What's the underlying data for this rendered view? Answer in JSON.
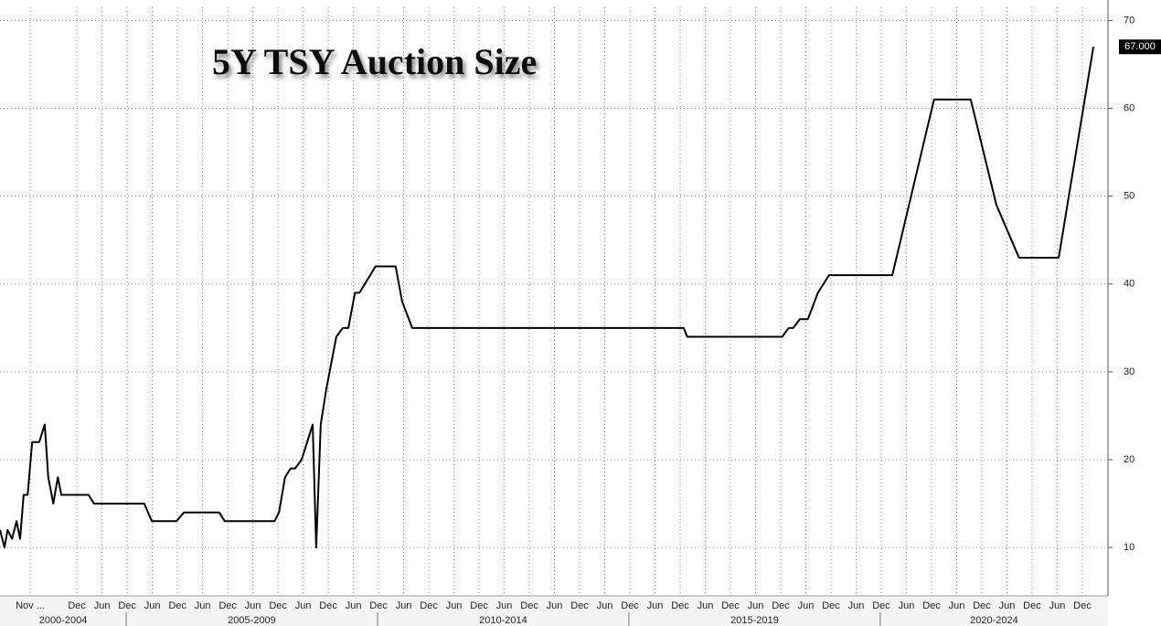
{
  "chart_data": {
    "type": "line",
    "title": "5Y TSY Auction Size",
    "x": [
      2002.49,
      2002.58,
      2002.64,
      2002.73,
      2002.82,
      2002.89,
      2002.96,
      2003.04,
      2003.13,
      2003.27,
      2003.38,
      2003.45,
      2003.55,
      2003.64,
      2003.71,
      2004.25,
      2004.36,
      2005.36,
      2005.51,
      2006.0,
      2006.15,
      2006.85,
      2006.96,
      2007.95,
      2008.04,
      2008.16,
      2008.27,
      2008.36,
      2008.49,
      2008.6,
      2008.71,
      2008.78,
      2008.87,
      2008.98,
      2009.18,
      2009.31,
      2009.42,
      2009.55,
      2009.64,
      2009.96,
      2010.36,
      2010.49,
      2010.69,
      2016.09,
      2016.16,
      2018.05,
      2018.18,
      2018.27,
      2018.4,
      2018.56,
      2018.76,
      2018.98,
      2020.24,
      2021.07,
      2021.8,
      2022.31,
      2022.76,
      2023.55,
      2024.24
    ],
    "series": [
      {
        "name": "5Y TSY Auction Size",
        "color": "#000000",
        "values": [
          12,
          10,
          12,
          11,
          13,
          11,
          16,
          16,
          22,
          22,
          24,
          18,
          15,
          18,
          16,
          16,
          15,
          15,
          13,
          13,
          14,
          14,
          13,
          13,
          14,
          18,
          19,
          19,
          20,
          22,
          24,
          10,
          24,
          28,
          34,
          35,
          35,
          39,
          39,
          42,
          42,
          38,
          35,
          35,
          34,
          34,
          35,
          35,
          36,
          36,
          39,
          41,
          41,
          61,
          61,
          49,
          43,
          43,
          67
        ]
      }
    ],
    "end_label": "67.000",
    "xlim": [
      2002.49,
      2024.53
    ],
    "ylim": [
      4.5,
      71.5
    ],
    "yticks": [
      10,
      20,
      30,
      40,
      50,
      60,
      70
    ],
    "xticks": [
      {
        "value": 2003.09,
        "label": "Nov ..."
      },
      {
        "value": 2004.02,
        "label": "Dec"
      },
      {
        "value": 2004.52,
        "label": "Jun"
      },
      {
        "value": 2005.02,
        "label": "Dec"
      },
      {
        "value": 2005.52,
        "label": "Jun"
      },
      {
        "value": 2006.02,
        "label": "Dec"
      },
      {
        "value": 2006.52,
        "label": "Jun"
      },
      {
        "value": 2007.02,
        "label": "Dec"
      },
      {
        "value": 2007.52,
        "label": "Jun"
      },
      {
        "value": 2008.02,
        "label": "Dec"
      },
      {
        "value": 2008.52,
        "label": "Jun"
      },
      {
        "value": 2009.02,
        "label": "Dec"
      },
      {
        "value": 2009.52,
        "label": "Jun"
      },
      {
        "value": 2010.02,
        "label": "Dec"
      },
      {
        "value": 2010.52,
        "label": "Jun"
      },
      {
        "value": 2011.02,
        "label": "Dec"
      },
      {
        "value": 2011.52,
        "label": "Jun"
      },
      {
        "value": 2012.02,
        "label": "Dec"
      },
      {
        "value": 2012.52,
        "label": "Jun"
      },
      {
        "value": 2013.02,
        "label": "Dec"
      },
      {
        "value": 2013.52,
        "label": "Jun"
      },
      {
        "value": 2014.02,
        "label": "Dec"
      },
      {
        "value": 2014.52,
        "label": "Jun"
      },
      {
        "value": 2015.02,
        "label": "Dec"
      },
      {
        "value": 2015.52,
        "label": "Jun"
      },
      {
        "value": 2016.02,
        "label": "Dec"
      },
      {
        "value": 2016.52,
        "label": "Jun"
      },
      {
        "value": 2017.02,
        "label": "Dec"
      },
      {
        "value": 2017.52,
        "label": "Jun"
      },
      {
        "value": 2018.02,
        "label": "Dec"
      },
      {
        "value": 2018.52,
        "label": "Jun"
      },
      {
        "value": 2019.02,
        "label": "Dec"
      },
      {
        "value": 2019.52,
        "label": "Jun"
      },
      {
        "value": 2020.02,
        "label": "Dec"
      },
      {
        "value": 2020.52,
        "label": "Jun"
      },
      {
        "value": 2021.02,
        "label": "Dec"
      },
      {
        "value": 2021.52,
        "label": "Jun"
      },
      {
        "value": 2022.02,
        "label": "Dec"
      },
      {
        "value": 2022.52,
        "label": "Jun"
      },
      {
        "value": 2023.02,
        "label": "Dec"
      },
      {
        "value": 2023.52,
        "label": "Jun"
      },
      {
        "value": 2024.02,
        "label": "Dec"
      }
    ],
    "year_groups": [
      {
        "label": "2000-2004",
        "start": 2002.49,
        "end": 2005
      },
      {
        "label": "2005-2009",
        "start": 2005,
        "end": 2010
      },
      {
        "label": "2010-2014",
        "start": 2010,
        "end": 2015
      },
      {
        "label": "2015-2019",
        "start": 2015,
        "end": 2020
      },
      {
        "label": "2020-2024",
        "start": 2020,
        "end": 2024.53
      }
    ],
    "grid": true
  }
}
